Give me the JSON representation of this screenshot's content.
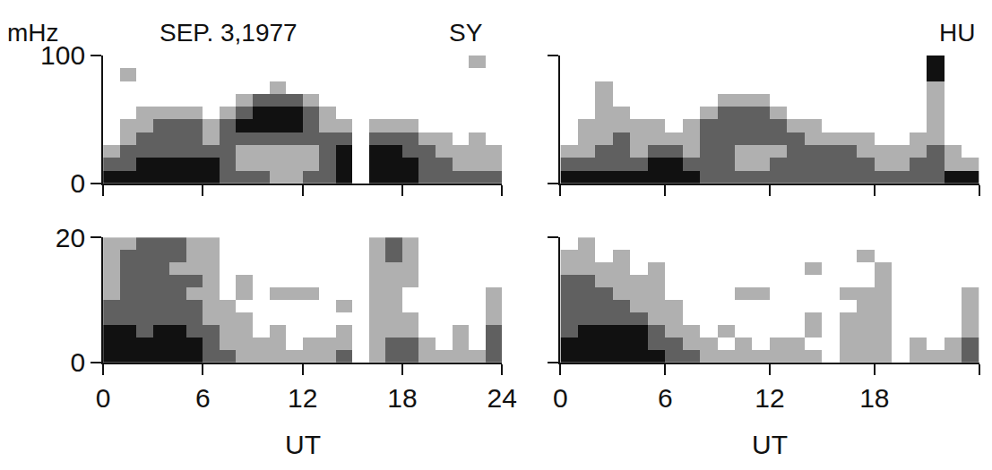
{
  "chart_data": [
    {
      "type": "heatmap",
      "title": "SY",
      "annotations": [
        "SEP. 3,1977"
      ],
      "ylabel": "mHz",
      "color": "#111111",
      "tick_labels": "y",
      "xlim": [
        0,
        24
      ],
      "xticks": [
        0,
        6,
        12,
        18,
        24
      ],
      "ylim": [
        0,
        100
      ],
      "yticks": [
        0,
        100
      ],
      "x": [
        0.5,
        1.5,
        2.5,
        3.5,
        4.5,
        5.5,
        6.5,
        7.5,
        8.5,
        9.5,
        10.5,
        11.5,
        12.5,
        13.5,
        14.5,
        15.5,
        16.5,
        17.5,
        18.5,
        19.5,
        20.5,
        21.5,
        22.5,
        23.5
      ],
      "y": [
        5,
        15,
        25,
        35,
        45,
        55,
        65,
        75,
        85,
        95
      ],
      "z": [
        [
          3,
          3,
          3,
          3,
          3,
          3,
          3,
          2,
          2,
          2,
          1,
          1,
          2,
          2,
          3,
          0,
          3,
          3,
          3,
          2,
          2,
          2,
          2,
          2
        ],
        [
          2,
          2,
          3,
          3,
          3,
          3,
          3,
          2,
          1,
          1,
          1,
          1,
          1,
          2,
          3,
          0,
          3,
          3,
          3,
          2,
          2,
          1,
          1,
          1
        ],
        [
          1,
          2,
          2,
          2,
          2,
          2,
          2,
          2,
          1,
          1,
          1,
          1,
          1,
          2,
          3,
          0,
          3,
          3,
          2,
          2,
          1,
          1,
          1,
          1
        ],
        [
          0,
          1,
          2,
          2,
          2,
          2,
          1,
          2,
          2,
          2,
          2,
          2,
          2,
          2,
          2,
          0,
          2,
          2,
          2,
          1,
          1,
          0,
          1,
          0
        ],
        [
          0,
          1,
          1,
          2,
          2,
          2,
          1,
          2,
          3,
          3,
          3,
          3,
          2,
          1,
          1,
          0,
          1,
          1,
          1,
          0,
          0,
          0,
          0,
          0
        ],
        [
          0,
          0,
          1,
          1,
          1,
          1,
          0,
          1,
          2,
          3,
          3,
          3,
          2,
          1,
          0,
          0,
          0,
          0,
          0,
          0,
          0,
          0,
          0,
          0
        ],
        [
          0,
          0,
          0,
          0,
          0,
          0,
          0,
          0,
          1,
          2,
          2,
          2,
          1,
          0,
          0,
          0,
          0,
          0,
          0,
          0,
          0,
          0,
          0,
          0
        ],
        [
          0,
          0,
          0,
          0,
          0,
          0,
          0,
          0,
          0,
          0,
          1,
          0,
          0,
          0,
          0,
          0,
          0,
          0,
          0,
          0,
          0,
          0,
          0,
          0
        ],
        [
          0,
          1,
          0,
          0,
          0,
          0,
          0,
          0,
          0,
          0,
          0,
          0,
          0,
          0,
          0,
          0,
          0,
          0,
          0,
          0,
          0,
          0,
          0,
          0
        ],
        [
          0,
          0,
          0,
          0,
          0,
          0,
          0,
          0,
          0,
          0,
          0,
          0,
          0,
          0,
          0,
          0,
          0,
          0,
          0,
          0,
          0,
          0,
          1,
          0
        ]
      ]
    },
    {
      "type": "heatmap",
      "title": "HU",
      "color": "#111111",
      "tick_labels": false,
      "xlim": [
        0,
        24
      ],
      "xticks": [
        0,
        6,
        12,
        18,
        24
      ],
      "ylim": [
        0,
        100
      ],
      "yticks": [
        0,
        100
      ],
      "x": [
        0.5,
        1.5,
        2.5,
        3.5,
        4.5,
        5.5,
        6.5,
        7.5,
        8.5,
        9.5,
        10.5,
        11.5,
        12.5,
        13.5,
        14.5,
        15.5,
        16.5,
        17.5,
        18.5,
        19.5,
        20.5,
        21.5,
        22.5,
        23.5
      ],
      "y": [
        5,
        15,
        25,
        35,
        45,
        55,
        65,
        75,
        85,
        95
      ],
      "z": [
        [
          3,
          3,
          3,
          3,
          3,
          3,
          3,
          3,
          2,
          2,
          2,
          2,
          2,
          2,
          2,
          2,
          2,
          2,
          2,
          2,
          2,
          2,
          3,
          3
        ],
        [
          2,
          2,
          2,
          2,
          2,
          3,
          3,
          2,
          2,
          2,
          1,
          1,
          2,
          2,
          2,
          2,
          2,
          2,
          1,
          1,
          2,
          2,
          1,
          1
        ],
        [
          1,
          1,
          2,
          2,
          1,
          2,
          2,
          1,
          2,
          2,
          1,
          1,
          1,
          2,
          2,
          2,
          2,
          1,
          1,
          1,
          1,
          2,
          1,
          0
        ],
        [
          0,
          1,
          1,
          2,
          1,
          1,
          1,
          1,
          2,
          2,
          2,
          2,
          2,
          2,
          1,
          1,
          1,
          1,
          0,
          0,
          1,
          1,
          0,
          0
        ],
        [
          0,
          1,
          1,
          1,
          1,
          1,
          0,
          1,
          2,
          2,
          2,
          2,
          2,
          1,
          1,
          0,
          0,
          0,
          0,
          0,
          0,
          1,
          0,
          0
        ],
        [
          0,
          0,
          1,
          1,
          0,
          0,
          0,
          0,
          1,
          2,
          2,
          2,
          1,
          0,
          0,
          0,
          0,
          0,
          0,
          0,
          0,
          1,
          0,
          0
        ],
        [
          0,
          0,
          1,
          0,
          0,
          0,
          0,
          0,
          0,
          1,
          1,
          1,
          0,
          0,
          0,
          0,
          0,
          0,
          0,
          0,
          0,
          1,
          0,
          0
        ],
        [
          0,
          0,
          1,
          0,
          0,
          0,
          0,
          0,
          0,
          0,
          0,
          0,
          0,
          0,
          0,
          0,
          0,
          0,
          0,
          0,
          0,
          1,
          0,
          0
        ],
        [
          0,
          0,
          0,
          0,
          0,
          0,
          0,
          0,
          0,
          0,
          0,
          0,
          0,
          0,
          0,
          0,
          0,
          0,
          0,
          0,
          0,
          3,
          0,
          0
        ],
        [
          0,
          0,
          0,
          0,
          0,
          0,
          0,
          0,
          0,
          0,
          0,
          0,
          0,
          0,
          0,
          0,
          0,
          0,
          0,
          0,
          0,
          3,
          0,
          0
        ]
      ]
    },
    {
      "type": "heatmap",
      "xlabel": "UT",
      "color": "#111111",
      "xlim": [
        0,
        24
      ],
      "xticks": [
        0,
        6,
        12,
        18,
        24
      ],
      "ylim": [
        0,
        20
      ],
      "yticks": [
        0,
        20
      ],
      "x": [
        0.5,
        1.5,
        2.5,
        3.5,
        4.5,
        5.5,
        6.5,
        7.5,
        8.5,
        9.5,
        10.5,
        11.5,
        12.5,
        13.5,
        14.5,
        15.5,
        16.5,
        17.5,
        18.5,
        19.5,
        20.5,
        21.5,
        22.5,
        23.5
      ],
      "y": [
        1,
        3,
        5,
        7,
        9,
        11,
        13,
        15,
        17,
        19
      ],
      "z": [
        [
          3,
          3,
          3,
          3,
          3,
          3,
          2,
          2,
          1,
          1,
          1,
          1,
          1,
          1,
          2,
          0,
          1,
          2,
          2,
          1,
          1,
          1,
          1,
          2
        ],
        [
          3,
          3,
          3,
          3,
          3,
          3,
          2,
          1,
          1,
          1,
          1,
          0,
          1,
          1,
          1,
          0,
          1,
          2,
          2,
          1,
          0,
          1,
          0,
          2
        ],
        [
          3,
          3,
          2,
          3,
          3,
          2,
          2,
          1,
          1,
          0,
          1,
          0,
          0,
          0,
          1,
          0,
          1,
          1,
          1,
          0,
          0,
          1,
          0,
          2
        ],
        [
          2,
          2,
          2,
          2,
          2,
          2,
          1,
          1,
          1,
          0,
          0,
          0,
          0,
          0,
          0,
          0,
          1,
          1,
          1,
          0,
          0,
          0,
          0,
          1
        ],
        [
          2,
          2,
          2,
          2,
          2,
          2,
          1,
          1,
          0,
          0,
          0,
          0,
          0,
          0,
          1,
          0,
          1,
          1,
          0,
          0,
          0,
          0,
          0,
          1
        ],
        [
          1,
          2,
          2,
          2,
          2,
          1,
          1,
          0,
          1,
          0,
          1,
          1,
          1,
          0,
          0,
          0,
          1,
          1,
          0,
          0,
          0,
          0,
          0,
          1
        ],
        [
          1,
          2,
          2,
          2,
          2,
          2,
          1,
          0,
          1,
          0,
          0,
          0,
          0,
          0,
          0,
          0,
          1,
          1,
          1,
          0,
          0,
          0,
          0,
          0
        ],
        [
          1,
          2,
          2,
          2,
          1,
          1,
          1,
          0,
          0,
          0,
          0,
          0,
          0,
          0,
          0,
          0,
          1,
          1,
          1,
          0,
          0,
          0,
          0,
          0
        ],
        [
          1,
          2,
          2,
          2,
          2,
          1,
          1,
          0,
          0,
          0,
          0,
          0,
          0,
          0,
          0,
          0,
          1,
          2,
          1,
          0,
          0,
          0,
          0,
          0
        ],
        [
          1,
          1,
          2,
          2,
          2,
          1,
          1,
          0,
          0,
          0,
          0,
          0,
          0,
          0,
          0,
          0,
          1,
          2,
          1,
          0,
          0,
          0,
          0,
          0
        ]
      ]
    },
    {
      "type": "heatmap",
      "xlabel": "UT",
      "color": "#111111",
      "tick_labels": "x",
      "xlim": [
        0,
        24
      ],
      "xticks": [
        0,
        6,
        12,
        18,
        24
      ],
      "ylim": [
        0,
        20
      ],
      "yticks": [
        0,
        20
      ],
      "x": [
        0.5,
        1.5,
        2.5,
        3.5,
        4.5,
        5.5,
        6.5,
        7.5,
        8.5,
        9.5,
        10.5,
        11.5,
        12.5,
        13.5,
        14.5,
        15.5,
        16.5,
        17.5,
        18.5,
        19.5,
        20.5,
        21.5,
        22.5,
        23.5
      ],
      "y": [
        1,
        3,
        5,
        7,
        9,
        11,
        13,
        15,
        17,
        19
      ],
      "z": [
        [
          3,
          3,
          3,
          3,
          3,
          3,
          2,
          2,
          1,
          1,
          1,
          1,
          1,
          1,
          1,
          0,
          1,
          1,
          1,
          0,
          1,
          1,
          1,
          2
        ],
        [
          3,
          3,
          3,
          3,
          3,
          2,
          2,
          1,
          1,
          0,
          1,
          0,
          1,
          1,
          0,
          0,
          1,
          1,
          1,
          0,
          1,
          0,
          1,
          2
        ],
        [
          2,
          3,
          3,
          3,
          3,
          2,
          1,
          1,
          0,
          1,
          0,
          0,
          0,
          0,
          1,
          0,
          1,
          1,
          1,
          0,
          0,
          0,
          0,
          1
        ],
        [
          2,
          2,
          2,
          2,
          2,
          1,
          1,
          0,
          0,
          0,
          0,
          0,
          0,
          0,
          1,
          0,
          1,
          1,
          1,
          0,
          0,
          0,
          0,
          1
        ],
        [
          2,
          2,
          2,
          2,
          1,
          1,
          1,
          0,
          0,
          0,
          0,
          0,
          0,
          0,
          0,
          0,
          0,
          1,
          1,
          0,
          0,
          0,
          0,
          1
        ],
        [
          2,
          2,
          2,
          1,
          1,
          1,
          0,
          0,
          0,
          0,
          1,
          1,
          0,
          0,
          0,
          0,
          1,
          1,
          1,
          0,
          0,
          0,
          0,
          1
        ],
        [
          2,
          2,
          1,
          1,
          1,
          1,
          0,
          0,
          0,
          0,
          0,
          0,
          0,
          0,
          0,
          0,
          0,
          0,
          1,
          0,
          0,
          0,
          0,
          0
        ],
        [
          1,
          1,
          1,
          1,
          0,
          1,
          0,
          0,
          0,
          0,
          0,
          0,
          0,
          0,
          1,
          0,
          0,
          0,
          1,
          0,
          0,
          0,
          0,
          0
        ],
        [
          1,
          1,
          0,
          1,
          0,
          0,
          0,
          0,
          0,
          0,
          0,
          0,
          0,
          0,
          0,
          0,
          0,
          1,
          0,
          0,
          0,
          0,
          0,
          0
        ],
        [
          0,
          1,
          0,
          0,
          0,
          0,
          0,
          0,
          0,
          0,
          0,
          0,
          0,
          0,
          0,
          0,
          0,
          0,
          0,
          0,
          0,
          0,
          0,
          0
        ]
      ]
    }
  ]
}
